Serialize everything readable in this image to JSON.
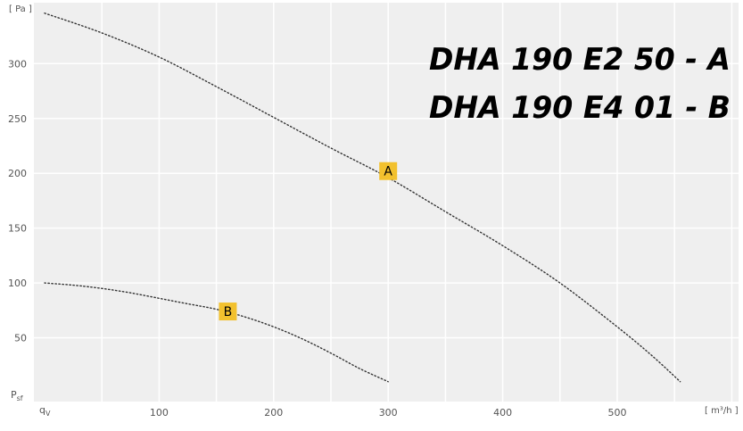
{
  "models": [
    {
      "text": "DHA 190 E2 50 - A"
    },
    {
      "text": "DHA 190 E4 01 - B"
    }
  ],
  "axes": {
    "y_unit": "[ Pa ]",
    "x_unit": "[ m³/h ]",
    "y_symbol": "P",
    "y_symbol_sub": "sf",
    "x_symbol": "q",
    "x_symbol_sub": "V"
  },
  "colors": {
    "background": "#efefef",
    "grid": "#ffffff",
    "curve": "#333333",
    "label_fill": "#f2c12e"
  },
  "chart_data": {
    "type": "line",
    "xlim": [
      0,
      610
    ],
    "ylim": [
      0,
      350
    ],
    "x_ticks": [
      50,
      100,
      150,
      200,
      250,
      300,
      350,
      400,
      450,
      500,
      550,
      600
    ],
    "x_tick_labels": [
      {
        "value": 100,
        "label": "100"
      },
      {
        "value": 200,
        "label": "200"
      },
      {
        "value": 300,
        "label": "300"
      },
      {
        "value": 400,
        "label": "400"
      },
      {
        "value": 500,
        "label": "500"
      }
    ],
    "y_ticks": [
      50,
      100,
      150,
      200,
      250,
      300
    ],
    "y_tick_labels": [
      {
        "value": 50,
        "label": "50"
      },
      {
        "value": 100,
        "label": "100"
      },
      {
        "value": 150,
        "label": "150"
      },
      {
        "value": 200,
        "label": "200"
      },
      {
        "value": 250,
        "label": "250"
      },
      {
        "value": 300,
        "label": "300"
      }
    ],
    "grid": true,
    "series": [
      {
        "name": "A",
        "x": [
          0,
          50,
          100,
          150,
          200,
          250,
          300,
          350,
          400,
          450,
          500,
          530,
          555
        ],
        "y": [
          346,
          328,
          306,
          279,
          251,
          223,
          196,
          165,
          134,
          100,
          60,
          34,
          10
        ],
        "label_at": [
          300,
          202
        ]
      },
      {
        "name": "B",
        "x": [
          0,
          25,
          50,
          75,
          100,
          125,
          150,
          175,
          200,
          225,
          250,
          275,
          300
        ],
        "y": [
          100,
          98,
          95,
          91,
          86,
          81,
          76,
          69,
          60,
          49,
          36,
          22,
          10
        ],
        "label_at": [
          160,
          74
        ]
      }
    ]
  }
}
